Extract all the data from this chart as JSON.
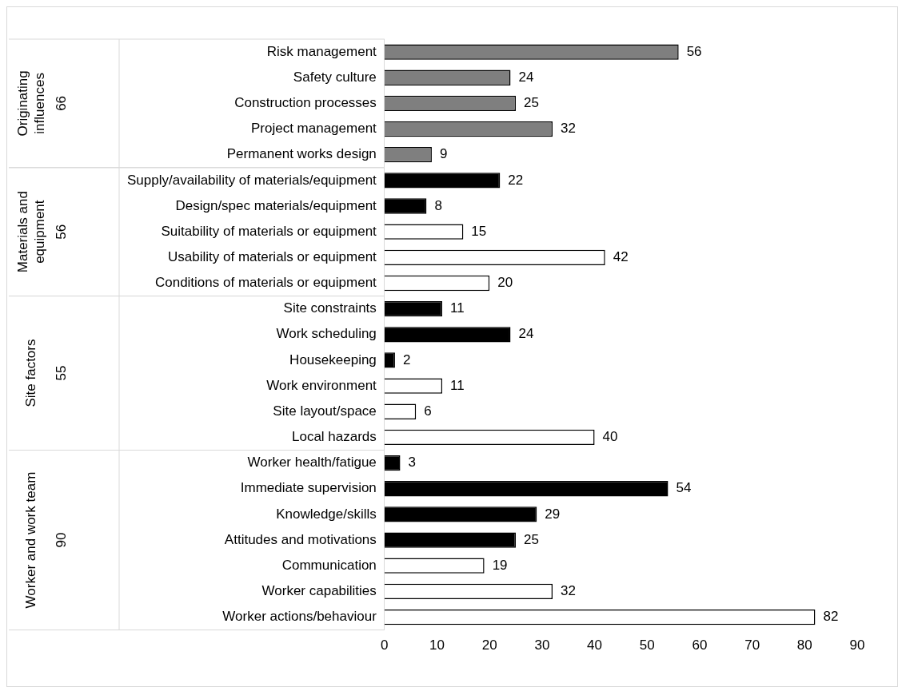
{
  "chart_data": {
    "type": "bar",
    "orientation": "horizontal",
    "categories": [
      "Risk management",
      "Safety culture",
      "Construction processes",
      "Project management",
      "Permanent works design",
      "Supply/availability of materials/equipment",
      "Design/spec materials/equipment",
      "Suitability of materials or equipment",
      "Usability of materials or equipment",
      "Conditions of materials or equipment",
      "Site constraints",
      "Work scheduling",
      "Housekeeping",
      "Work environment",
      "Site layout/space",
      "Local hazards",
      "Worker health/fatigue",
      "Immediate supervision",
      "Knowledge/skills",
      "Attitudes and motivations",
      "Communication",
      "Worker capabilities",
      "Worker actions/behaviour"
    ],
    "values": [
      56,
      24,
      25,
      32,
      9,
      22,
      8,
      15,
      42,
      20,
      11,
      24,
      2,
      11,
      6,
      40,
      3,
      54,
      29,
      25,
      19,
      32,
      82
    ],
    "colors": [
      "#7f7f7f",
      "#7f7f7f",
      "#7f7f7f",
      "#7f7f7f",
      "#7f7f7f",
      "#000000",
      "#000000",
      "#ffffff",
      "#ffffff",
      "#ffffff",
      "#000000",
      "#000000",
      "#000000",
      "#ffffff",
      "#ffffff",
      "#ffffff",
      "#000000",
      "#000000",
      "#000000",
      "#000000",
      "#ffffff",
      "#ffffff",
      "#ffffff"
    ],
    "xlim": [
      0,
      90
    ],
    "xticks": [
      0,
      10,
      20,
      30,
      40,
      50,
      60,
      70,
      80,
      90
    ],
    "grid": false,
    "legend": false,
    "data_labels": true,
    "annotations": [
      "Originating influences",
      "66",
      "Materials and equipment",
      "56",
      "Site factors",
      "55",
      "Worker and work team",
      "90"
    ]
  }
}
